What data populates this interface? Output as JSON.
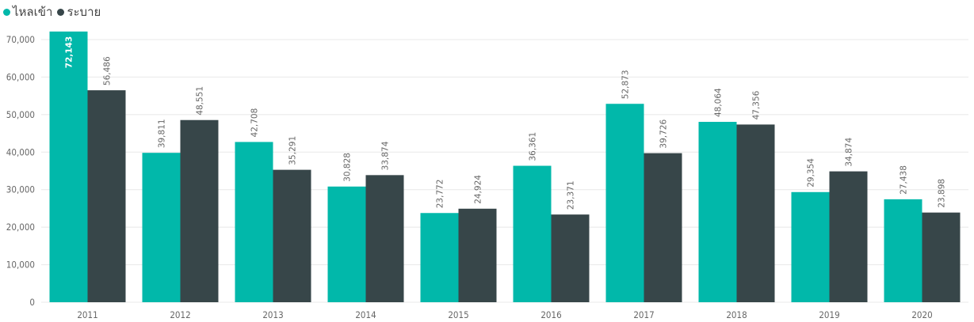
{
  "colors": {
    "inflow": "#01b8aa",
    "release": "#374649",
    "grid": "#e8e8e8",
    "axis_text": "#666666"
  },
  "legend": {
    "items": [
      {
        "label": "ไหลเข้า",
        "color": "#01b8aa"
      },
      {
        "label": "ระบาย",
        "color": "#374649"
      }
    ]
  },
  "chart_data": {
    "type": "bar",
    "categories": [
      "2011",
      "2012",
      "2013",
      "2014",
      "2015",
      "2016",
      "2017",
      "2018",
      "2019",
      "2020"
    ],
    "series": [
      {
        "name": "ไหลเข้า",
        "color": "#01b8aa",
        "values": [
          72143,
          39811,
          42708,
          30828,
          23772,
          36361,
          52873,
          48064,
          29354,
          27438
        ],
        "labels": [
          "72,143",
          "39,811",
          "42,708",
          "30,828",
          "23,772",
          "36,361",
          "52,873",
          "48,064",
          "29,354",
          "27,438"
        ]
      },
      {
        "name": "ระบาย",
        "color": "#374649",
        "values": [
          56486,
          48551,
          35291,
          33874,
          24924,
          23371,
          39726,
          47356,
          34874,
          23898
        ],
        "labels": [
          "56,486",
          "48,551",
          "35,291",
          "33,874",
          "24,924",
          "23,371",
          "39,726",
          "47,356",
          "34,874",
          "23,898"
        ]
      }
    ],
    "yticks": [
      0,
      10000,
      20000,
      30000,
      40000,
      50000,
      60000,
      70000
    ],
    "ytick_labels": [
      "0",
      "10,000",
      "20,000",
      "30,000",
      "40,000",
      "50,000",
      "60,000",
      "70,000"
    ],
    "ylim": [
      0,
      70000
    ],
    "grid": true,
    "legend_position": "top-left",
    "xlabel": "",
    "ylabel": ""
  }
}
